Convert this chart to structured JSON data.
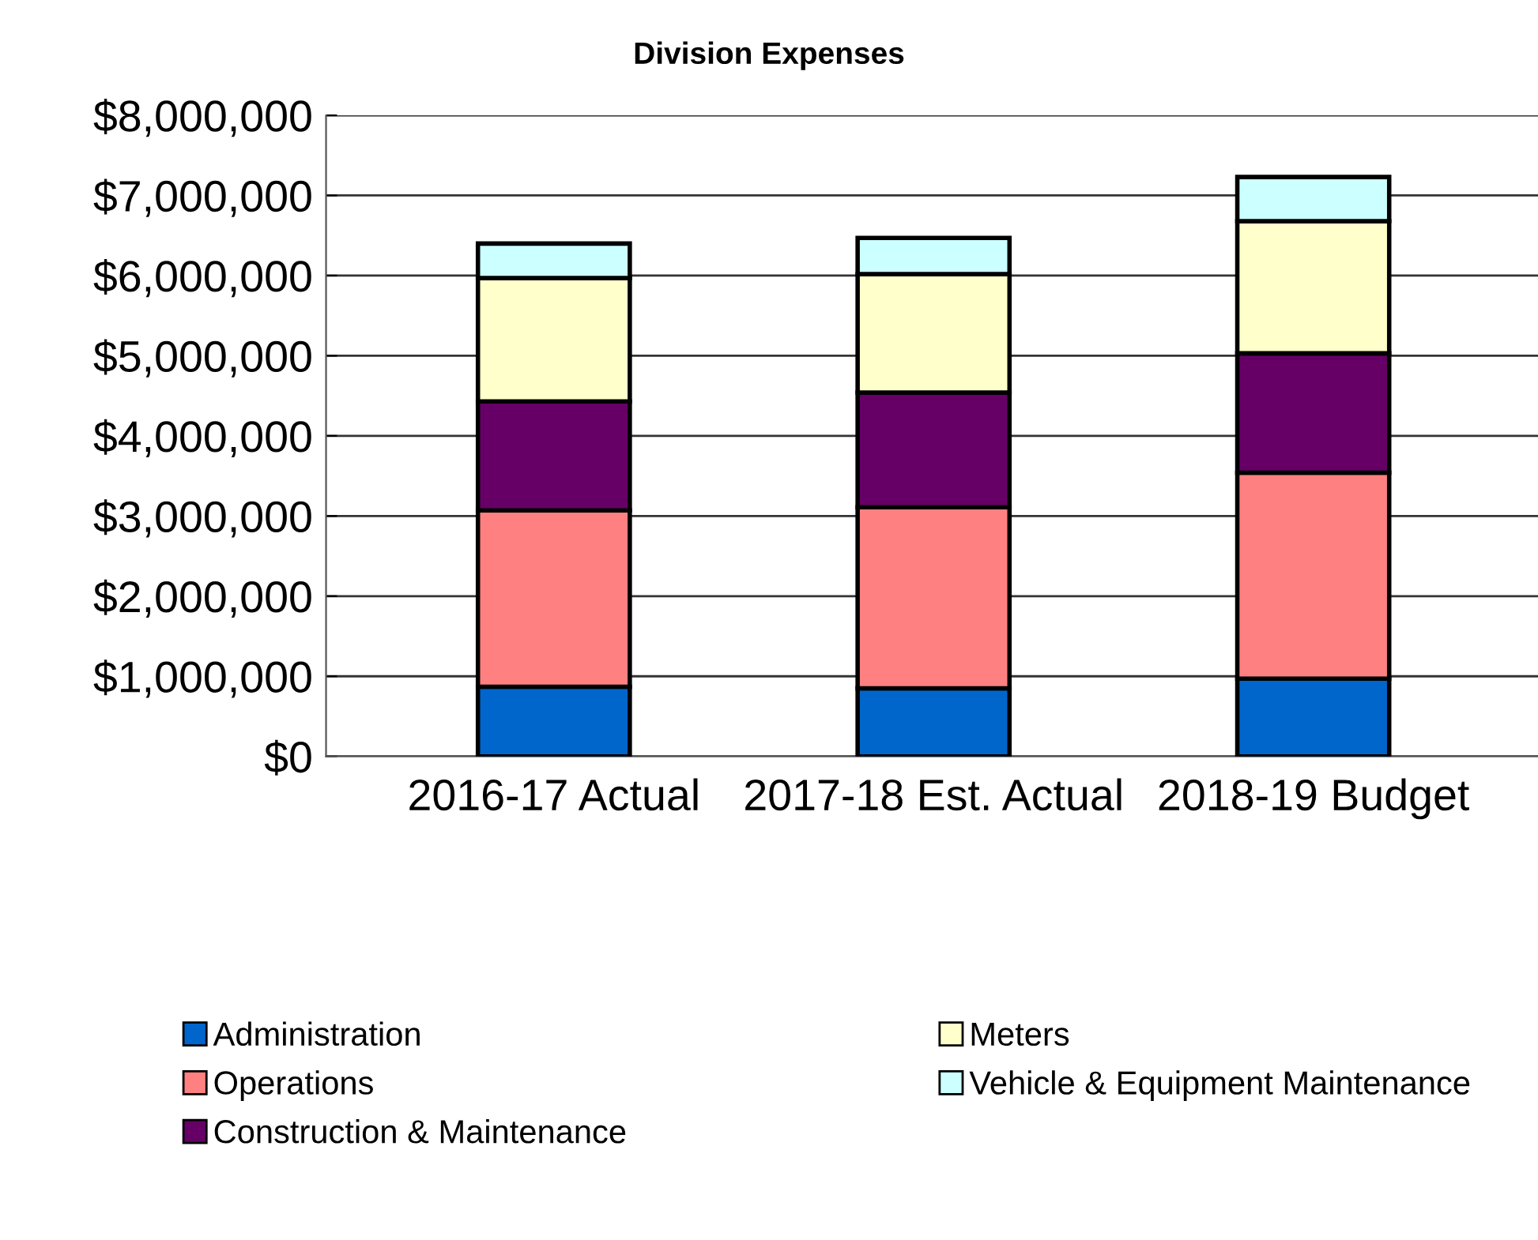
{
  "chart_data": {
    "type": "bar",
    "title": "Division Expenses",
    "stacked": true,
    "categories": [
      "2016-17 Actual",
      "2017-18 Est. Actual",
      "2018-19 Budget"
    ],
    "series": [
      {
        "name": "Administration",
        "color": "#0066cc",
        "values": [
          870000,
          850000,
          970000
        ]
      },
      {
        "name": "Operations",
        "color": "#ff8080",
        "values": [
          2200000,
          2260000,
          2570000
        ]
      },
      {
        "name": "Construction & Maintenance",
        "color": "#660066",
        "values": [
          1360000,
          1430000,
          1490000
        ]
      },
      {
        "name": "Meters",
        "color": "#ffffcc",
        "values": [
          1540000,
          1480000,
          1650000
        ]
      },
      {
        "name": "Vehicle & Equipment Maintenance",
        "color": "#ccffff",
        "values": [
          430000,
          450000,
          550000
        ]
      }
    ],
    "ylim": [
      0,
      8000000
    ],
    "yticks": [
      {
        "value": 0,
        "label": "$0"
      },
      {
        "value": 1000000,
        "label": "$1,000,000"
      },
      {
        "value": 2000000,
        "label": "$2,000,000"
      },
      {
        "value": 3000000,
        "label": "$3,000,000"
      },
      {
        "value": 4000000,
        "label": "$4,000,000"
      },
      {
        "value": 5000000,
        "label": "$5,000,000"
      },
      {
        "value": 6000000,
        "label": "$6,000,000"
      },
      {
        "value": 7000000,
        "label": "$7,000,000"
      },
      {
        "value": 8000000,
        "label": "$8,000,000"
      }
    ],
    "grid": "y",
    "legend": "bottom"
  }
}
